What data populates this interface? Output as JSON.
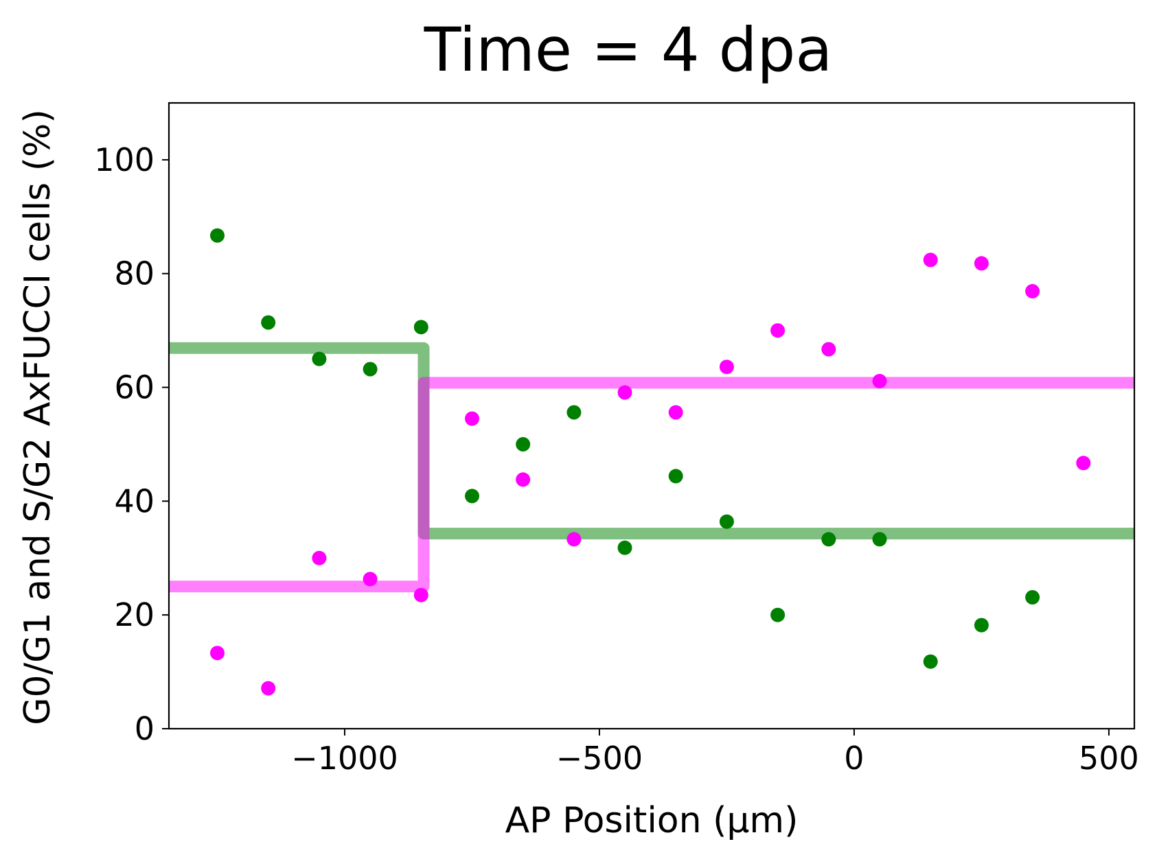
{
  "chart_data": {
    "type": "scatter",
    "title": "Time = 4 dpa",
    "xlabel": "AP Position (μm)",
    "ylabel": "G0/G1 and S/G2 AxFUCCI cells (%)",
    "xlim": [
      -1345,
      550
    ],
    "ylim": [
      0,
      110
    ],
    "xticks": [
      -1000,
      -500,
      0,
      500
    ],
    "xtick_labels": [
      "−1000",
      "−500",
      "0",
      "500"
    ],
    "yticks": [
      0,
      20,
      40,
      60,
      80,
      100
    ],
    "ytick_labels": [
      "0",
      "20",
      "40",
      "60",
      "80",
      "100"
    ],
    "grid": false,
    "legend": "none",
    "series": [
      {
        "kind": "points",
        "color": "#008000",
        "x": [
          -1250,
          -1150,
          -1050,
          -950,
          -850,
          -750,
          -650,
          -550,
          -450,
          -350,
          -250,
          -150,
          -50,
          50,
          150,
          250,
          350
        ],
        "y": [
          86.7,
          71.4,
          65.0,
          63.2,
          70.6,
          40.9,
          50.0,
          55.6,
          31.8,
          44.4,
          36.4,
          20.0,
          33.3,
          33.3,
          11.8,
          18.2,
          23.1
        ]
      },
      {
        "kind": "points",
        "color": "#ff00ff",
        "x": [
          -1250,
          -1150,
          -1050,
          -950,
          -850,
          -750,
          -650,
          -550,
          -450,
          -350,
          -250,
          -150,
          -50,
          50,
          150,
          250,
          350,
          450
        ],
        "y": [
          13.3,
          7.1,
          30.0,
          26.3,
          23.5,
          54.5,
          43.8,
          33.3,
          59.1,
          55.6,
          63.6,
          70.0,
          66.7,
          61.1,
          82.4,
          81.8,
          76.9,
          46.7
        ]
      },
      {
        "kind": "step",
        "color": "#008000",
        "opacity": 0.5,
        "x": [
          -1345,
          -845,
          -845,
          550
        ],
        "y": [
          66.9,
          66.9,
          34.3,
          34.3
        ]
      },
      {
        "kind": "step",
        "color": "#ff00ff",
        "opacity": 0.5,
        "x": [
          -1345,
          -845,
          -845,
          550
        ],
        "y": [
          25.0,
          25.0,
          60.8,
          60.8
        ]
      }
    ]
  }
}
